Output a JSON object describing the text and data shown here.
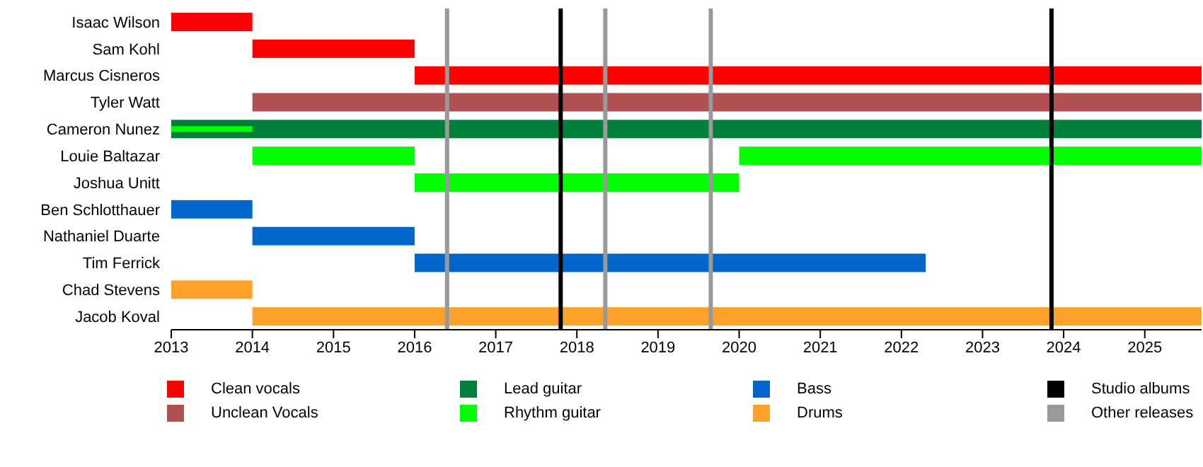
{
  "chart_data": {
    "type": "bar",
    "orientation": "horizontal",
    "categories": [
      "Isaac Wilson",
      "Sam Kohl",
      "Marcus Cisneros",
      "Tyler Watt",
      "Cameron Nunez",
      "Louie Baltazar",
      "Joshua Unitt",
      "Ben Schlotthauer",
      "Nathaniel Duarte",
      "Tim Ferrick",
      "Chad Stevens",
      "Jacob Koval"
    ],
    "series": [
      {
        "name": "Clean vocals",
        "color": "#ff0000",
        "base": [
          2013,
          2014,
          2016,
          null,
          null,
          null,
          null,
          null,
          null,
          null,
          null,
          null
        ],
        "values": [
          1,
          2,
          9.7,
          null,
          null,
          null,
          null,
          null,
          null,
          null,
          null,
          null
        ]
      },
      {
        "name": "Unclean Vocals",
        "color": "#b05050",
        "base": [
          null,
          null,
          null,
          2014,
          null,
          null,
          null,
          null,
          null,
          null,
          null,
          null
        ],
        "values": [
          null,
          null,
          null,
          11.7,
          null,
          null,
          null,
          null,
          null,
          null,
          null,
          null
        ]
      },
      {
        "name": "Lead guitar",
        "color": "#007f3a",
        "base": [
          null,
          null,
          null,
          null,
          2013,
          null,
          null,
          null,
          null,
          null,
          null,
          null
        ],
        "values": [
          null,
          null,
          null,
          null,
          12.7,
          null,
          null,
          null,
          null,
          null,
          null,
          null
        ]
      },
      {
        "name": "Rhythm guitar",
        "color": "#00ff00",
        "base": [
          null,
          null,
          null,
          null,
          2013,
          2014,
          2016,
          null,
          null,
          null,
          null,
          null
        ],
        "values": [
          null,
          null,
          null,
          null,
          1,
          2,
          4,
          null,
          null,
          null,
          null,
          null
        ]
      },
      {
        "color": "#00ff00",
        "base": [
          null,
          null,
          null,
          null,
          null,
          2020,
          null,
          null,
          null,
          null,
          null,
          null
        ],
        "values": [
          null,
          null,
          null,
          null,
          null,
          5.7,
          null,
          null,
          null,
          null,
          null,
          null
        ]
      },
      {
        "name": "Bass",
        "color": "#0066cc",
        "base": [
          null,
          null,
          null,
          null,
          null,
          null,
          null,
          2013,
          2014,
          2016,
          null,
          null
        ],
        "values": [
          null,
          null,
          null,
          null,
          null,
          null,
          null,
          1,
          2,
          6.3,
          null,
          null
        ]
      },
      {
        "name": "Drums",
        "color": "#ffa22a",
        "base": [
          null,
          null,
          null,
          null,
          null,
          null,
          null,
          null,
          null,
          null,
          2013,
          2014
        ],
        "values": [
          null,
          null,
          null,
          null,
          null,
          null,
          null,
          null,
          null,
          null,
          1,
          11.7
        ]
      }
    ],
    "ref_lines": [
      {
        "axis": "x",
        "value": 2017.8,
        "label": "Studio albums",
        "color": "#000000"
      },
      {
        "axis": "x",
        "value": 2016.4,
        "label": "Other releases",
        "color": "#999999"
      },
      {
        "axis": "x",
        "value": 2018.35,
        "color": "#999999"
      },
      {
        "axis": "x",
        "value": 2019.65,
        "color": "#999999"
      },
      {
        "axis": "x",
        "value": 2023.85,
        "color": "#000000"
      }
    ],
    "xlim": [
      2013,
      2025.7
    ],
    "xticks": [
      2013,
      2014,
      2015,
      2016,
      2017,
      2018,
      2019,
      2020,
      2021,
      2022,
      2023,
      2024,
      2025
    ],
    "legend": "bottom"
  }
}
